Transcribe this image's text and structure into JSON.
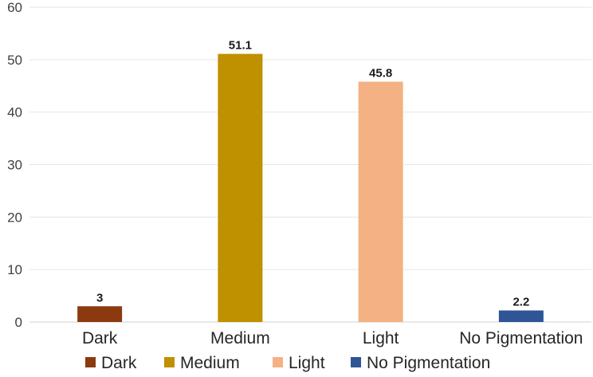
{
  "chart_data": {
    "type": "bar",
    "title": "",
    "xlabel": "",
    "ylabel": "",
    "categories": [
      "Dark",
      "Medium",
      "Light",
      "No Pigmentation"
    ],
    "values": [
      3,
      51.1,
      45.8,
      2.2
    ],
    "data_labels": [
      "3",
      "51.1",
      "45.8",
      "2.2"
    ],
    "colors": [
      "#8b3a0f",
      "#bf9000",
      "#f4b183",
      "#2f5597"
    ],
    "ylim": [
      0,
      60
    ],
    "yticks": [
      0,
      10,
      20,
      30,
      40,
      50,
      60
    ],
    "ytick_labels": [
      "0",
      "10",
      "20",
      "30",
      "40",
      "50",
      "60"
    ],
    "grid": true,
    "legend": {
      "position": "bottom",
      "entries": [
        "Dark",
        "Medium",
        "Light",
        "No Pigmentation"
      ]
    }
  }
}
